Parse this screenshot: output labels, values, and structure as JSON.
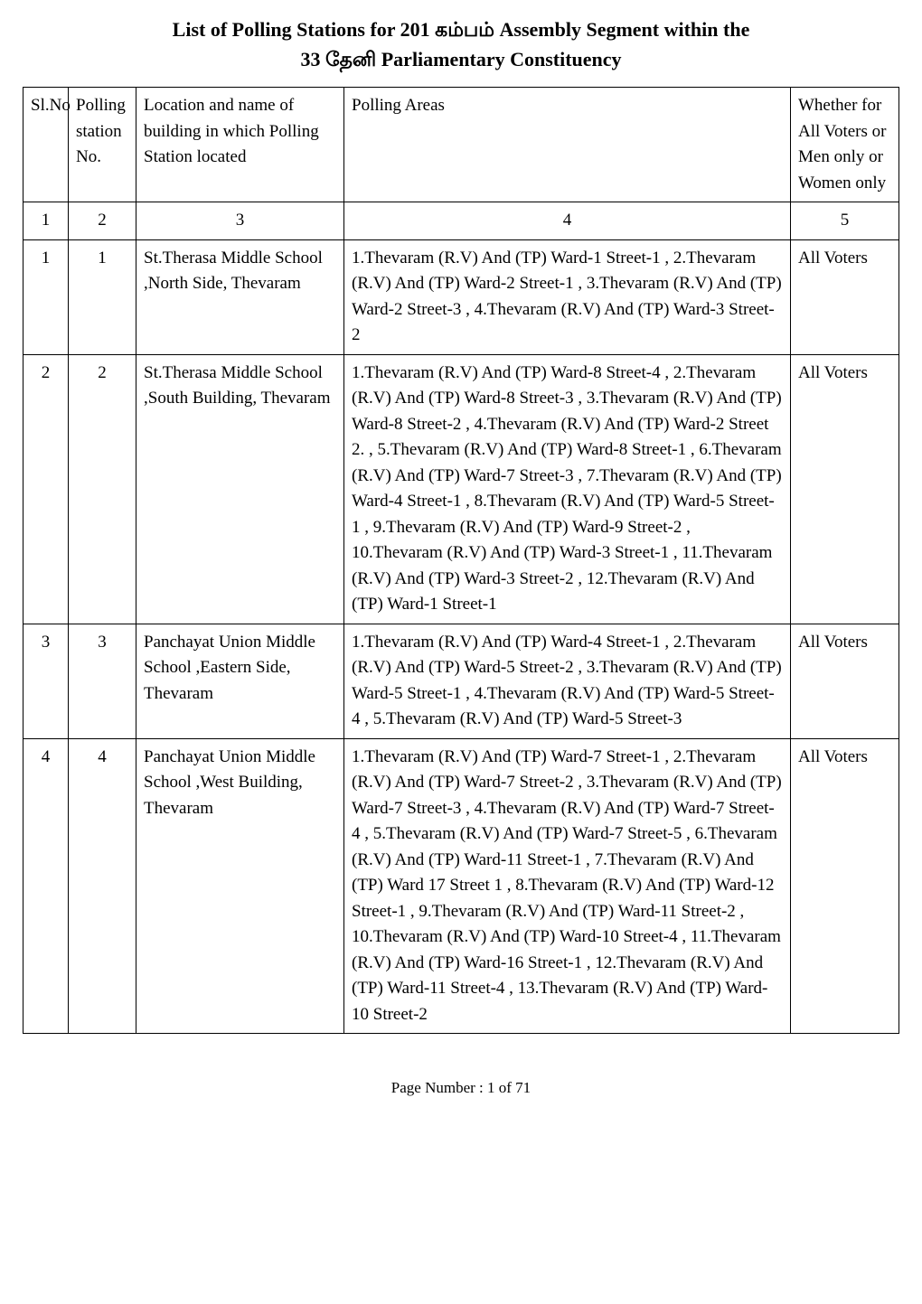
{
  "header": {
    "title_line1": "List of Polling Stations for  201   கம்பம்    Assembly Segment within the",
    "title_line2": "33  தேனி  Parliamentary Constituency"
  },
  "table": {
    "columns": {
      "slno": "Sl.No",
      "polling": "Polling station No.",
      "location": "Location and name of building in which  Polling Station located",
      "areas": "Polling Areas",
      "whether": "Whether for All Voters or Men only or Women only"
    },
    "number_row": {
      "c1": "1",
      "c2": "2",
      "c3": "3",
      "c4": "4",
      "c5": "5"
    },
    "rows": [
      {
        "slno": "1",
        "polling": "1",
        "location": "St.Therasa Middle School   ,North Side, Thevaram",
        "areas": "1.Thevaram (R.V) And (TP) Ward-1 Street-1 , 2.Thevaram (R.V) And (TP) Ward-2 Street-1 , 3.Thevaram (R.V) And (TP) Ward-2 Street-3 , 4.Thevaram (R.V) And (TP) Ward-3 Street-2",
        "whether": "All Voters"
      },
      {
        "slno": "2",
        "polling": "2",
        "location": "St.Therasa Middle School    ,South Building, Thevaram",
        "areas": "1.Thevaram (R.V) And (TP) Ward-8 Street-4 , 2.Thevaram (R.V) And (TP) Ward-8 Street-3 , 3.Thevaram (R.V) And (TP) Ward-8 Street-2 , 4.Thevaram (R.V) And (TP) Ward-2 Street 2. , 5.Thevaram (R.V) And (TP) Ward-8 Street-1 , 6.Thevaram (R.V) And (TP) Ward-7 Street-3 , 7.Thevaram (R.V) And (TP) Ward-4 Street-1 , 8.Thevaram (R.V) And (TP) Ward-5 Street-1 , 9.Thevaram (R.V) And (TP) Ward-9 Street-2 , 10.Thevaram (R.V) And (TP) Ward-3 Street-1 , 11.Thevaram (R.V) And (TP) Ward-3 Street-2 , 12.Thevaram (R.V) And (TP) Ward-1 Street-1",
        "whether": "All Voters"
      },
      {
        "slno": "3",
        "polling": "3",
        "location": "Panchayat Union Middle School ,Eastern Side, Thevaram",
        "areas": "1.Thevaram (R.V) And (TP) Ward-4 Street-1 , 2.Thevaram (R.V) And (TP) Ward-5 Street-2 , 3.Thevaram (R.V) And (TP) Ward-5 Street-1 , 4.Thevaram (R.V) And (TP) Ward-5 Street-4 , 5.Thevaram (R.V) And (TP) Ward-5 Street-3",
        "whether": "All Voters"
      },
      {
        "slno": "4",
        "polling": "4",
        "location": "Panchayat Union Middle School ,West Building, Thevaram",
        "areas": "1.Thevaram (R.V) And (TP) Ward-7 Street-1 , 2.Thevaram (R.V) And (TP) Ward-7 Street-2 , 3.Thevaram (R.V) And (TP) Ward-7 Street-3 , 4.Thevaram (R.V) And (TP) Ward-7 Street-4 , 5.Thevaram (R.V) And (TP) Ward-7 Street-5 , 6.Thevaram (R.V) And (TP) Ward-11 Street-1 , 7.Thevaram (R.V) And (TP) Ward 17 Street 1 , 8.Thevaram (R.V) And (TP) Ward-12 Street-1 , 9.Thevaram (R.V) And (TP) Ward-11 Street-2 , 10.Thevaram (R.V) And (TP) Ward-10 Street-4 , 11.Thevaram (R.V) And (TP) Ward-16 Street-1 , 12.Thevaram (R.V) And (TP) Ward-11 Street-4 , 13.Thevaram (R.V) And (TP) Ward-10 Street-2",
        "whether": "All Voters"
      }
    ]
  },
  "footer": "Page Number : 1 of 71"
}
